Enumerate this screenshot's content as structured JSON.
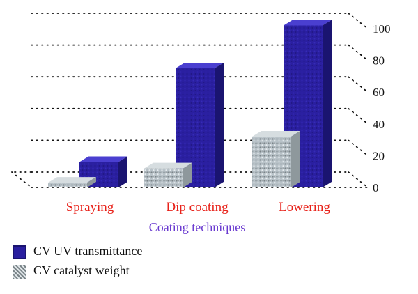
{
  "chart_data": {
    "type": "bar",
    "categories": [
      "Spraying",
      "Dip coating",
      "Lowering"
    ],
    "series": [
      {
        "name": "CV catalyst weight",
        "values": [
          3,
          12,
          32
        ]
      },
      {
        "name": "CV UV transmittance",
        "values": [
          16,
          75,
          102
        ]
      }
    ],
    "xlabel": "Coating techniques",
    "ylabel": "",
    "ylim": [
      0,
      100
    ],
    "yticks": [
      0,
      20,
      40,
      60,
      80,
      100
    ],
    "grid": true,
    "legend_position": "bottom-left",
    "colors": {
      "uv_transmittance": "#2a1fa0",
      "catalyst_weight": "#b8c2c8",
      "category_labels": "#e8221a",
      "axis_title": "#6a3ad0"
    }
  }
}
